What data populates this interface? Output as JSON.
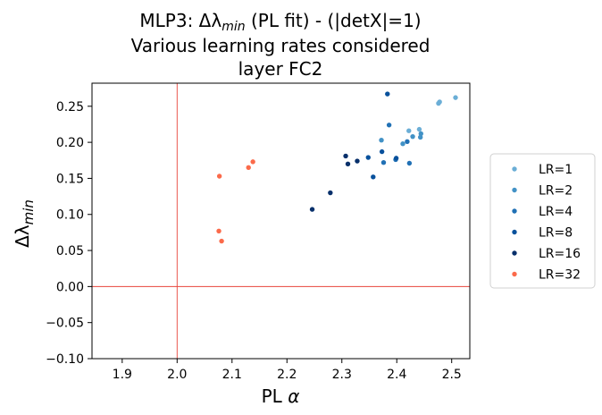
{
  "chart_data": {
    "type": "scatter",
    "title_lines": [
      "MLP3: Δλ_min (PL fit) - (|detX|=1)",
      "Various learning rates considered",
      "layer FC2"
    ],
    "xlabel": "PL α",
    "ylabel": "Δλ_min",
    "xlim": [
      1.845,
      2.533
    ],
    "ylim": [
      -0.1,
      0.282
    ],
    "xticks": [
      "1.9",
      "2.0",
      "2.1",
      "2.2",
      "2.3",
      "2.4",
      "2.5"
    ],
    "yticks": [
      "−0.10",
      "−0.05",
      "0.00",
      "0.05",
      "0.10",
      "0.15",
      "0.20",
      "0.25"
    ],
    "reference_lines": {
      "x": 2.0,
      "y": 0.0,
      "color": "#e8453c"
    },
    "legend_position": "center-right, outside plot",
    "series": [
      {
        "name": "LR=1",
        "color": "#6baed6",
        "points": [
          [
            2.476,
            0.254
          ],
          [
            2.478,
            0.256
          ],
          [
            2.507,
            0.262
          ],
          [
            2.422,
            0.216
          ],
          [
            2.441,
            0.218
          ]
        ]
      },
      {
        "name": "LR=2",
        "color": "#4292c6",
        "points": [
          [
            2.372,
            0.203
          ],
          [
            2.411,
            0.198
          ],
          [
            2.429,
            0.208
          ],
          [
            2.444,
            0.212
          ],
          [
            2.443,
            0.207
          ]
        ]
      },
      {
        "name": "LR=4",
        "color": "#2171b5",
        "points": [
          [
            2.376,
            0.172
          ],
          [
            2.398,
            0.176
          ],
          [
            2.419,
            0.201
          ],
          [
            2.386,
            0.224
          ],
          [
            2.423,
            0.171
          ]
        ]
      },
      {
        "name": "LR=8",
        "color": "#08519c",
        "points": [
          [
            2.357,
            0.152
          ],
          [
            2.383,
            0.267
          ],
          [
            2.399,
            0.178
          ],
          [
            2.373,
            0.187
          ],
          [
            2.348,
            0.179
          ]
        ]
      },
      {
        "name": "LR=16",
        "color": "#08306b",
        "points": [
          [
            2.246,
            0.107
          ],
          [
            2.279,
            0.13
          ],
          [
            2.307,
            0.181
          ],
          [
            2.311,
            0.17
          ],
          [
            2.328,
            0.174
          ]
        ]
      },
      {
        "name": "LR=32",
        "color": "#fb6a4a",
        "points": [
          [
            2.076,
            0.077
          ],
          [
            2.081,
            0.063
          ],
          [
            2.077,
            0.153
          ],
          [
            2.13,
            0.165
          ],
          [
            2.138,
            0.173
          ]
        ]
      }
    ]
  }
}
